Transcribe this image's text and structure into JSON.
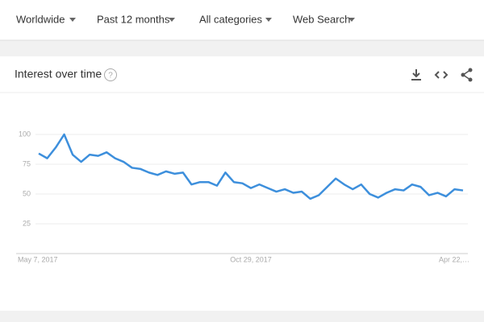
{
  "filters": [
    "Worldwide",
    "Past 12 months",
    "All categories",
    "Web Search"
  ],
  "card_title": "Interest over time",
  "chart_data": {
    "type": "line",
    "categories": [
      "May 7, 2017",
      null,
      null,
      null,
      null,
      null,
      null,
      null,
      null,
      null,
      null,
      null,
      null,
      null,
      null,
      null,
      null,
      null,
      null,
      null,
      null,
      null,
      null,
      null,
      null,
      "Oct 29, 2017",
      null,
      null,
      null,
      null,
      null,
      null,
      null,
      null,
      null,
      null,
      null,
      null,
      null,
      null,
      null,
      null,
      null,
      null,
      null,
      null,
      null,
      null,
      null,
      null,
      "Apr 22,…"
    ],
    "series": [
      {
        "color": "#3d8fdc",
        "values": [
          84,
          80,
          89,
          100,
          83,
          77,
          83,
          82,
          85,
          80,
          77,
          72,
          71,
          68,
          66,
          69,
          67,
          68,
          58,
          60,
          60,
          57,
          68,
          60,
          59,
          55,
          58,
          55,
          52,
          54,
          51,
          52,
          46,
          49,
          56,
          63,
          58,
          54,
          58,
          50,
          47,
          51,
          54,
          53,
          58,
          56,
          49,
          51,
          48,
          54,
          53
        ]
      }
    ],
    "ylim": [
      0,
      100
    ],
    "yticks": [
      25,
      50,
      75,
      100
    ],
    "grid": true
  }
}
